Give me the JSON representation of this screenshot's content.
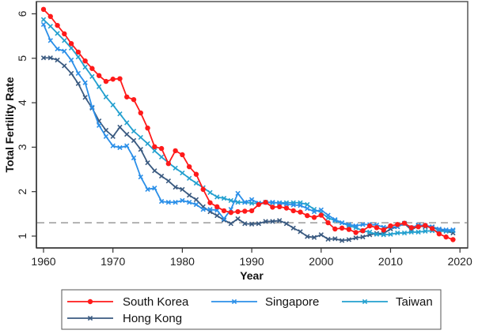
{
  "chart_data": {
    "type": "line",
    "title": "",
    "xlabel": "Year",
    "ylabel": "Total Fertility Rate",
    "xlim": [
      1958.9,
      2021.1
    ],
    "ylim": [
      0.74,
      6.2
    ],
    "xticks": [
      1960,
      1970,
      1980,
      1990,
      2000,
      2010,
      2020
    ],
    "xtick_labels": [
      "1960",
      "1970",
      "1980",
      "1990",
      "2000",
      "2010",
      "2020"
    ],
    "yticks": [
      1,
      2,
      3,
      4,
      5,
      6
    ],
    "ytick_labels": [
      "1",
      "2",
      "3",
      "4",
      "5",
      "6"
    ],
    "grid": false,
    "reference_line": {
      "y": 1.3,
      "style": "dashed",
      "color": "#999999"
    },
    "legend_position": "bottom",
    "x": [
      1960,
      1961,
      1962,
      1963,
      1964,
      1965,
      1966,
      1967,
      1968,
      1969,
      1970,
      1971,
      1972,
      1973,
      1974,
      1975,
      1976,
      1977,
      1978,
      1979,
      1980,
      1981,
      1982,
      1983,
      1984,
      1985,
      1986,
      1987,
      1988,
      1989,
      1990,
      1991,
      1992,
      1993,
      1994,
      1995,
      1996,
      1997,
      1998,
      1999,
      2000,
      2001,
      2002,
      2003,
      2004,
      2005,
      2006,
      2007,
      2008,
      2009,
      2010,
      2011,
      2012,
      2013,
      2014,
      2015,
      2016,
      2017,
      2018,
      2019
    ],
    "series": [
      {
        "name": "South Korea",
        "color": "#ff1a1a",
        "marker": "circle",
        "values": [
          6.1,
          5.94,
          5.74,
          5.55,
          5.33,
          5.14,
          4.94,
          4.77,
          4.61,
          4.48,
          4.53,
          4.54,
          4.13,
          4.07,
          3.77,
          3.43,
          3.01,
          2.97,
          2.63,
          2.92,
          2.83,
          2.56,
          2.39,
          2.05,
          1.75,
          1.66,
          1.57,
          1.53,
          1.55,
          1.56,
          1.57,
          1.71,
          1.76,
          1.65,
          1.66,
          1.63,
          1.57,
          1.54,
          1.46,
          1.42,
          1.47,
          1.3,
          1.16,
          1.18,
          1.15,
          1.08,
          1.12,
          1.23,
          1.19,
          1.14,
          1.23,
          1.26,
          1.29,
          1.19,
          1.21,
          1.24,
          1.17,
          1.05,
          0.98,
          0.92
        ]
      },
      {
        "name": "Singapore",
        "color": "#2b8fe8",
        "marker": "x",
        "values": [
          5.76,
          5.4,
          5.21,
          5.16,
          4.96,
          4.66,
          4.45,
          3.9,
          3.49,
          3.24,
          3.03,
          2.99,
          3.03,
          2.76,
          2.33,
          2.05,
          2.08,
          1.78,
          1.76,
          1.76,
          1.8,
          1.76,
          1.71,
          1.6,
          1.6,
          1.58,
          1.39,
          1.6,
          1.96,
          1.76,
          1.82,
          1.74,
          1.76,
          1.76,
          1.74,
          1.72,
          1.7,
          1.69,
          1.62,
          1.55,
          1.59,
          1.47,
          1.37,
          1.3,
          1.26,
          1.23,
          1.26,
          1.26,
          1.25,
          1.2,
          1.2,
          1.21,
          1.29,
          1.19,
          1.25,
          1.24,
          1.21,
          1.16,
          1.14,
          1.14
        ]
      },
      {
        "name": "Taiwan",
        "color": "#23a0cf",
        "marker": "x",
        "values": [
          5.87,
          5.72,
          5.56,
          5.4,
          5.23,
          5.03,
          4.8,
          4.59,
          4.36,
          4.13,
          3.95,
          3.75,
          3.55,
          3.36,
          3.22,
          3.08,
          2.92,
          2.78,
          2.65,
          2.53,
          2.42,
          2.3,
          2.19,
          2.09,
          1.98,
          1.88,
          1.85,
          1.8,
          1.76,
          1.76,
          1.74,
          1.74,
          1.76,
          1.75,
          1.75,
          1.75,
          1.75,
          1.75,
          1.71,
          1.6,
          1.53,
          1.41,
          1.35,
          1.3,
          1.23,
          1.19,
          1.12,
          1.09,
          1.04,
          1.03,
          1.04,
          1.07,
          1.07,
          1.09,
          1.09,
          1.11,
          1.12,
          1.11,
          1.11,
          1.12
        ]
      },
      {
        "name": "Hong Kong",
        "color": "#3a5a80",
        "marker": "x",
        "values": [
          5.01,
          5.01,
          4.96,
          4.83,
          4.66,
          4.43,
          4.12,
          3.88,
          3.59,
          3.38,
          3.24,
          3.45,
          3.29,
          3.15,
          2.95,
          2.65,
          2.47,
          2.35,
          2.24,
          2.1,
          2.05,
          1.92,
          1.82,
          1.66,
          1.55,
          1.46,
          1.36,
          1.28,
          1.39,
          1.28,
          1.27,
          1.28,
          1.33,
          1.33,
          1.35,
          1.28,
          1.18,
          1.1,
          0.99,
          0.97,
          1.03,
          0.93,
          0.94,
          0.9,
          0.92,
          0.96,
          0.98,
          1.03,
          1.06,
          1.06,
          1.16,
          1.21,
          1.28,
          1.14,
          1.23,
          1.21,
          1.2,
          1.14,
          1.11,
          1.07
        ]
      }
    ],
    "legend": [
      {
        "label": "South Korea",
        "series": 0
      },
      {
        "label": "Singapore",
        "series": 1
      },
      {
        "label": "Taiwan",
        "series": 2
      },
      {
        "label": "Hong Kong",
        "series": 3
      }
    ]
  }
}
